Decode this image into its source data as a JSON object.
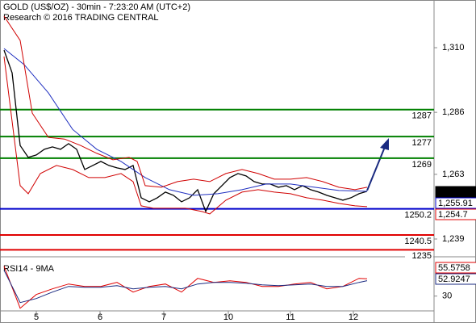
{
  "chart_data": [
    {
      "type": "price",
      "title": "GOLD (US$/OZ) - 30min - 7:23:20 AM (UTC+2)",
      "subtitle": "Research © 2016 TRADING CENTRAL",
      "xlim": [
        0,
        269
      ],
      "xticks": [
        {
          "value": 22.5,
          "label": "5"
        },
        {
          "value": 62,
          "label": "6"
        },
        {
          "value": 101.5,
          "label": "7"
        },
        {
          "value": 141.5,
          "label": "10"
        },
        {
          "value": 180,
          "label": "11"
        },
        {
          "value": 219,
          "label": "12"
        }
      ],
      "ylim": [
        1232.4,
        1327.7
      ],
      "yticks": [
        {
          "value": 1239,
          "label": "1,239"
        },
        {
          "value": 1263,
          "label": "1,263"
        },
        {
          "value": 1286,
          "label": "1,286"
        },
        {
          "value": 1310,
          "label": "1,310"
        }
      ],
      "levels": [
        {
          "value": 1287,
          "color": "#008000"
        },
        {
          "value": 1277,
          "color": "#008000"
        },
        {
          "value": 1269,
          "color": "#008000"
        },
        {
          "value": 1250.2,
          "color": "#0000cc"
        },
        {
          "value": 1240.5,
          "color": "#e00000"
        },
        {
          "value": 1235,
          "color": "#e00000"
        }
      ],
      "last_labels": [
        {
          "text": "1,256.16",
          "color": "#000000"
        },
        {
          "text": "1,255.91",
          "color": "#0000cc"
        },
        {
          "text": "1,254.7",
          "color": "#e00000"
        }
      ],
      "series": [
        {
          "name": "price",
          "color": "#000000",
          "x": [
            2.5,
            7.5,
            12.5,
            17.5,
            22.5,
            27.5,
            32.5,
            37.5,
            42.5,
            47.5,
            52.5,
            57.5,
            62.5,
            67.5,
            72.5,
            77.5,
            82.5,
            87.5,
            92.5,
            97.5,
            102.5,
            107.5,
            112.5,
            117.5,
            122.5,
            127.5,
            132.5,
            137.5,
            142.5,
            147.5,
            152.5,
            157.5,
            162.5,
            167.5,
            172.5,
            177.5,
            182.5,
            187.5,
            192.5,
            197.5,
            202.5,
            207.5,
            212.5,
            217.5,
            222.5,
            227.5
          ],
          "values": [
            1309.1,
            1300.7,
            1273.7,
            1269.3,
            1270.2,
            1272.3,
            1273.2,
            1272.3,
            1274.4,
            1272.3,
            1264.8,
            1266.3,
            1267.8,
            1266.3,
            1265.4,
            1264.8,
            1266.3,
            1254.3,
            1252.8,
            1254.3,
            1256.4,
            1255.2,
            1252.8,
            1254.3,
            1257.3,
            1249.2,
            1255.8,
            1258.8,
            1261.8,
            1263.3,
            1262.4,
            1260.3,
            1259.4,
            1259.4,
            1258.2,
            1258.8,
            1257.3,
            1258.8,
            1257.3,
            1256.4,
            1255.2,
            1254.3,
            1253.4,
            1254.3,
            1255.8,
            1256.7
          ]
        },
        {
          "name": "moving-average",
          "color": "#2030c0",
          "x": [
            2.5,
            15,
            30,
            45,
            60,
            75,
            90,
            105,
            120,
            135,
            150,
            165,
            180,
            195,
            210,
            227.5
          ],
          "values": [
            1309.7,
            1303.7,
            1293.2,
            1279.7,
            1272.3,
            1267.8,
            1261.8,
            1257.3,
            1255.2,
            1255.8,
            1257.3,
            1259.4,
            1259.4,
            1258.2,
            1257.0,
            1256.7
          ]
        },
        {
          "name": "upper-band",
          "color": "#d00000",
          "x": [
            2.5,
            12.5,
            20,
            30,
            40,
            50,
            60,
            70,
            80,
            85,
            90,
            100,
            110,
            120,
            130,
            140,
            150,
            160,
            170,
            180,
            190,
            200,
            210,
            220,
            227.5
          ],
          "values": [
            1321.7,
            1312.7,
            1285.7,
            1276.7,
            1276.1,
            1273.7,
            1270.8,
            1268.4,
            1269.3,
            1267.8,
            1258.8,
            1258.2,
            1260.3,
            1261.2,
            1260.3,
            1263.3,
            1264.8,
            1263.3,
            1261.2,
            1261.2,
            1261.8,
            1260.3,
            1258.2,
            1257.3,
            1258.2
          ]
        },
        {
          "name": "lower-band",
          "color": "#d00000",
          "x": [
            2.5,
            7.5,
            12.5,
            17.5,
            25,
            35,
            45,
            55,
            65,
            75,
            82.5,
            87.5,
            95,
            105,
            115,
            125,
            130,
            140,
            150,
            160,
            170,
            180,
            190,
            200,
            210,
            220,
            227.5
          ],
          "values": [
            1306.7,
            1282.7,
            1258.8,
            1255.8,
            1263.3,
            1266.3,
            1264.8,
            1261.8,
            1261.8,
            1263.3,
            1260.3,
            1251.3,
            1250.4,
            1250.4,
            1250.4,
            1249.2,
            1248.3,
            1253.4,
            1256.4,
            1257.3,
            1256.4,
            1255.8,
            1254.3,
            1253.4,
            1252.2,
            1251.3,
            1251.0
          ]
        }
      ]
    },
    {
      "type": "rsi",
      "title": "RSI14 - 9MA",
      "xlim": [
        0,
        269
      ],
      "ylim": [
        8,
        80
      ],
      "yticks": [
        30
      ],
      "last_labels": [
        {
          "text": "55.5758",
          "color": "#e00000"
        },
        {
          "text": "52.9247",
          "color": "#1a2a80"
        }
      ],
      "series": [
        {
          "name": "rsi",
          "color": "#e00000",
          "x": [
            2.5,
            12.5,
            22.5,
            32.5,
            42.5,
            52.5,
            62.5,
            72.5,
            82.5,
            92.5,
            102.5,
            112.5,
            122.5,
            132.5,
            142.5,
            152.5,
            162.5,
            172.5,
            182.5,
            192.5,
            202.5,
            212.5,
            222.5,
            227.5
          ],
          "values": [
            74.4,
            12,
            32.4,
            40.8,
            48,
            44.4,
            44.4,
            50.4,
            36,
            44.4,
            48,
            36,
            56.4,
            50.4,
            52.8,
            50.4,
            44.4,
            44.4,
            48,
            50.4,
            40.8,
            44.4,
            56.4,
            55.6
          ]
        },
        {
          "name": "rsi-ma",
          "color": "#1a2a80",
          "x": [
            2.5,
            12.5,
            22.5,
            32.5,
            42.5,
            52.5,
            62.5,
            72.5,
            82.5,
            92.5,
            102.5,
            112.5,
            122.5,
            132.5,
            142.5,
            152.5,
            162.5,
            172.5,
            182.5,
            192.5,
            202.5,
            212.5,
            222.5,
            227.5
          ],
          "values": [
            68.4,
            20.4,
            26.4,
            36,
            44.4,
            43.2,
            43.2,
            45.6,
            40.8,
            43.2,
            44.4,
            40.8,
            48,
            50.4,
            50.4,
            49.2,
            46.8,
            45.6,
            46.8,
            48,
            44.4,
            44.4,
            50.4,
            52.9
          ]
        }
      ]
    }
  ]
}
